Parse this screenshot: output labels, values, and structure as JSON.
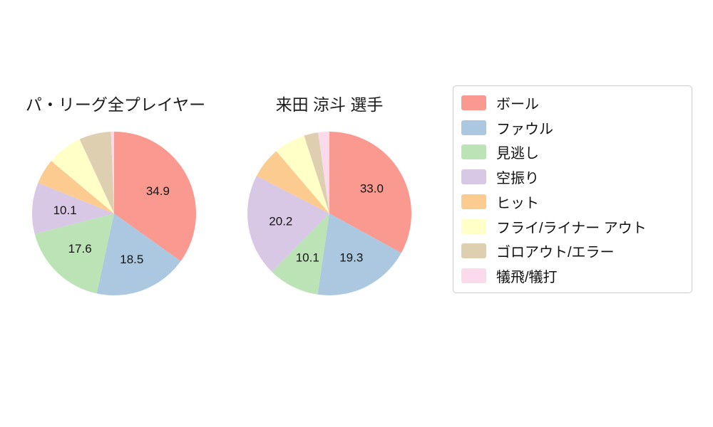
{
  "chart_data": [
    {
      "type": "pie",
      "title": "パ・リーグ全プレイヤー",
      "start_angle_deg": 90,
      "direction": "clockwise",
      "unit": "percent",
      "categories": [
        "ボール",
        "ファウル",
        "見逃し",
        "空振り",
        "ヒット",
        "フライ/ライナー アウト",
        "ゴロアウト/エラー",
        "犠飛/犠打"
      ],
      "values": [
        34.9,
        18.5,
        17.6,
        10.1,
        5.0,
        7.0,
        6.3,
        0.6
      ],
      "slice_labels": [
        "34.9",
        "18.5",
        "17.6",
        "10.1",
        "",
        "",
        "",
        ""
      ]
    },
    {
      "type": "pie",
      "title": "来田 涼斗  選手",
      "start_angle_deg": 90,
      "direction": "clockwise",
      "unit": "percent",
      "categories": [
        "ボール",
        "ファウル",
        "見逃し",
        "空振り",
        "ヒット",
        "フライ/ライナー アウト",
        "ゴロアウト/エラー",
        "犠飛/犠打"
      ],
      "values": [
        33.0,
        19.3,
        10.1,
        20.2,
        6.2,
        6.2,
        2.8,
        2.2
      ],
      "slice_labels": [
        "33.0",
        "19.3",
        "10.1",
        "20.2",
        "",
        "",
        "",
        ""
      ]
    }
  ],
  "legend": {
    "position": "right",
    "items": [
      {
        "label": "ボール",
        "color": "#f99990"
      },
      {
        "label": "ファウル",
        "color": "#abc8e0"
      },
      {
        "label": "見逃し",
        "color": "#bbe3b5"
      },
      {
        "label": "空振り",
        "color": "#d9c7e6"
      },
      {
        "label": "ヒット",
        "color": "#fccb90"
      },
      {
        "label": "フライ/ライナー アウト",
        "color": "#ffffc8"
      },
      {
        "label": "ゴロアウト/エラー",
        "color": "#decfb0"
      },
      {
        "label": "犠飛/犠打",
        "color": "#fbdaec"
      }
    ]
  }
}
